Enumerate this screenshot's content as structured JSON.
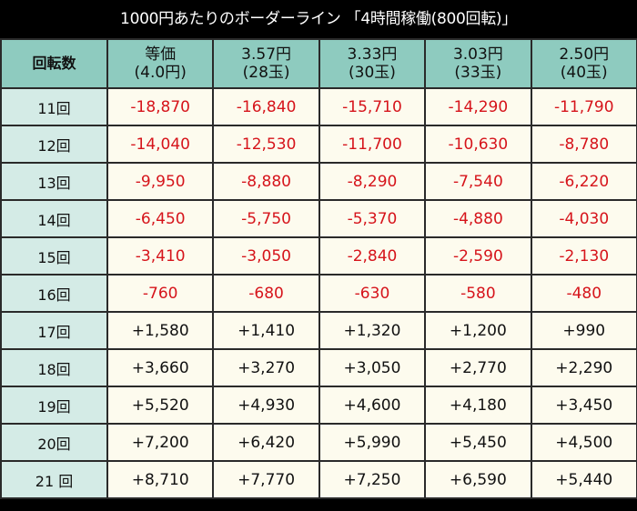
{
  "title": "1000円あたりのボーダーライン 「4時間稼働(800回転)」",
  "table": {
    "row_header_label": "回転数",
    "columns": [
      {
        "line1": "等価",
        "line2": "(4.0円)"
      },
      {
        "line1": "3.57円",
        "line2": "(28玉)"
      },
      {
        "line1": "3.33円",
        "line2": "(30玉)"
      },
      {
        "line1": "3.03円",
        "line2": "(33玉)"
      },
      {
        "line1": "2.50円",
        "line2": "(40玉)"
      }
    ],
    "rows": [
      {
        "label": "11回",
        "values": [
          "-18,870",
          "-16,840",
          "-15,710",
          "-14,290",
          "-11,790"
        ]
      },
      {
        "label": "12回",
        "values": [
          "-14,040",
          "-12,530",
          "-11,700",
          "-10,630",
          "-8,780"
        ]
      },
      {
        "label": "13回",
        "values": [
          "-9,950",
          "-8,880",
          "-8,290",
          "-7,540",
          "-6,220"
        ]
      },
      {
        "label": "14回",
        "values": [
          "-6,450",
          "-5,750",
          "-5,370",
          "-4,880",
          "-4,030"
        ]
      },
      {
        "label": "15回",
        "values": [
          "-3,410",
          "-3,050",
          "-2,840",
          "-2,590",
          "-2,130"
        ]
      },
      {
        "label": "16回",
        "values": [
          "-760",
          "-680",
          "-630",
          "-580",
          "-480"
        ]
      },
      {
        "label": "17回",
        "values": [
          "+1,580",
          "+1,410",
          "+1,320",
          "+1,200",
          "+990"
        ]
      },
      {
        "label": "18回",
        "values": [
          "+3,660",
          "+3,270",
          "+3,050",
          "+2,770",
          "+2,290"
        ]
      },
      {
        "label": "19回",
        "values": [
          "+5,520",
          "+4,930",
          "+4,600",
          "+4,180",
          "+3,450"
        ]
      },
      {
        "label": "20回",
        "values": [
          "+7,200",
          "+6,420",
          "+5,990",
          "+5,450",
          "+4,500"
        ]
      },
      {
        "label": "21 回",
        "values": [
          "+8,710",
          "+7,770",
          "+7,250",
          "+6,590",
          "+5,440"
        ]
      }
    ]
  },
  "colors": {
    "title_bg": "#000000",
    "header_bg": "#8ecbbf",
    "row_label_bg": "#d4ebe6",
    "cell_bg": "#fdfbee",
    "negative": "#d6141b",
    "positive": "#111111"
  }
}
